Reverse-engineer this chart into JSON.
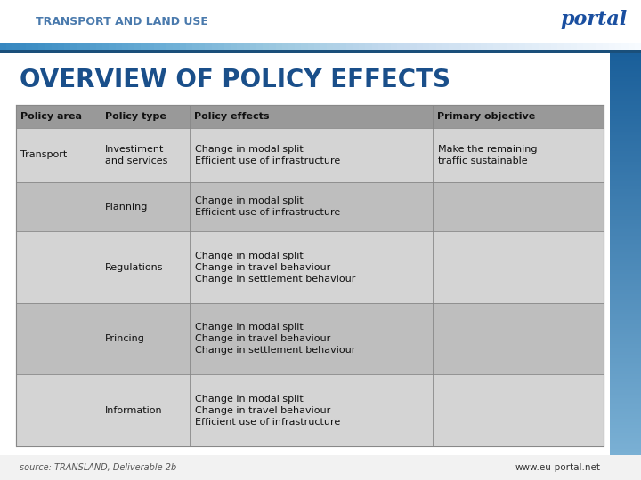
{
  "title_bar_text": "TRANSPORT AND LAND USE",
  "title_bar_text_color": "#4a7aad",
  "title_bar_bg": "#ffffff",
  "accent_strip_color_top": "#1a4f8a",
  "accent_strip_color_bot": "#8aabcc",
  "slide_bg": "#e8e8e8",
  "header_text": "OVERVIEW OF POLICY EFFECTS",
  "header_color": "#1a4f8a",
  "col_headers": [
    "Policy area",
    "Policy type",
    "Policy effects",
    "Primary objective"
  ],
  "rows": [
    {
      "area": "Transport",
      "type": "Investiment\nand services",
      "effects": "Change in modal split\nEfficient use of infrastructure",
      "objective": "Make the remaining\ntraffic sustainable",
      "shaded": false
    },
    {
      "area": "",
      "type": "Planning",
      "effects": "Change in modal split\nEfficient use of infrastructure",
      "objective": "",
      "shaded": true
    },
    {
      "area": "",
      "type": "Regulations",
      "effects": "Change in modal split\nChange in travel behaviour\nChange in settlement behaviour",
      "objective": "",
      "shaded": false
    },
    {
      "area": "",
      "type": "Princing",
      "effects": "Change in modal split\nChange in travel behaviour\nChange in settlement behaviour",
      "objective": "",
      "shaded": true
    },
    {
      "area": "",
      "type": "Information",
      "effects": "Change in modal split\nChange in travel behaviour\nEfficient use of infrastructure",
      "objective": "",
      "shaded": false
    }
  ],
  "table_header_bg": "#999999",
  "row_bg_light": "#d4d4d4",
  "row_bg_dark": "#bebebe",
  "source_text": "source: TRANSLAND, Deliverable 2b",
  "source_color": "#555555",
  "website_text": "www.eu-portal.net",
  "right_bar_color_top": "#1a5f9a",
  "right_bar_color_bot": "#7ab0d4"
}
